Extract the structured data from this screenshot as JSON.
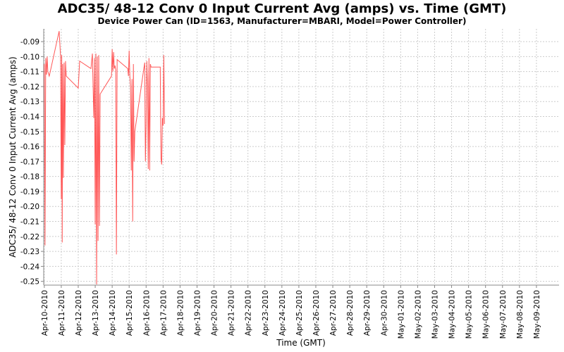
{
  "chart_data": {
    "type": "line",
    "title": "ADC35/ 48-12 Conv 0 Input Current Avg (amps) vs. Time (GMT)",
    "subtitle": "Device Power Can (ID=1563, Manufacturer=MBARI, Model=Power Controller)",
    "xlabel": "Time (GMT)",
    "ylabel": "ADC35/ 48-12 Conv 0 Input Current Avg (amps)",
    "x_tick_labels": [
      "Apr-10-2010",
      "Apr-11-2010",
      "Apr-12-2010",
      "Apr-13-2010",
      "Apr-14-2010",
      "Apr-15-2010",
      "Apr-16-2010",
      "Apr-17-2010",
      "Apr-18-2010",
      "Apr-19-2010",
      "Apr-20-2010",
      "Apr-21-2010",
      "Apr-22-2010",
      "Apr-23-2010",
      "Apr-24-2010",
      "Apr-25-2010",
      "Apr-26-2010",
      "Apr-27-2010",
      "Apr-28-2010",
      "Apr-29-2010",
      "Apr-30-2010",
      "May-01-2010",
      "May-02-2010",
      "May-03-2010",
      "May-04-2010",
      "May-05-2010",
      "May-06-2010",
      "May-07-2010",
      "May-08-2010",
      "May-09-2010"
    ],
    "y_tick_labels": [
      "-0.09",
      "-0.10",
      "-0.11",
      "-0.12",
      "-0.13",
      "-0.14",
      "-0.15",
      "-0.16",
      "-0.17",
      "-0.18",
      "-0.19",
      "-0.20",
      "-0.21",
      "-0.22",
      "-0.23",
      "-0.24",
      "-0.25"
    ],
    "y_ticks": [
      -0.09,
      -0.1,
      -0.11,
      -0.12,
      -0.13,
      -0.14,
      -0.15,
      -0.16,
      -0.17,
      -0.18,
      -0.19,
      -0.2,
      -0.21,
      -0.22,
      -0.23,
      -0.24,
      -0.25
    ],
    "xlim": [
      "2010-04-09T23:10",
      "2010-05-10T08:00"
    ],
    "ylim": [
      -0.2525,
      -0.0815
    ],
    "grid": true,
    "series": [
      {
        "color": "#ff5555",
        "points": [
          [
            "2010-04-10T00:00",
            -0.105
          ],
          [
            "2010-04-10T01:00",
            -0.226
          ],
          [
            "2010-04-10T02:00",
            -0.101
          ],
          [
            "2010-04-10T03:00",
            -0.112
          ],
          [
            "2010-04-10T04:00",
            -0.1
          ],
          [
            "2010-04-10T05:00",
            -0.11
          ],
          [
            "2010-04-10T07:00",
            -0.113
          ],
          [
            "2010-04-10T21:00",
            -0.083
          ],
          [
            "2010-04-10T23:00",
            -0.1
          ],
          [
            "2010-04-11T00:00",
            -0.195
          ],
          [
            "2010-04-11T00:40",
            -0.099
          ],
          [
            "2010-04-11T01:20",
            -0.224
          ],
          [
            "2010-04-11T02:00",
            -0.105
          ],
          [
            "2010-04-11T03:00",
            -0.181
          ],
          [
            "2010-04-11T04:00",
            -0.104
          ],
          [
            "2010-04-11T05:00",
            -0.159
          ],
          [
            "2010-04-11T06:00",
            -0.103
          ],
          [
            "2010-04-11T07:00",
            -0.113
          ],
          [
            "2010-04-12T00:00",
            -0.121
          ],
          [
            "2010-04-12T02:00",
            -0.103
          ],
          [
            "2010-04-12T18:00",
            -0.108
          ],
          [
            "2010-04-12T20:00",
            -0.098
          ],
          [
            "2010-04-12T22:00",
            -0.141
          ],
          [
            "2010-04-12T23:00",
            -0.101
          ],
          [
            "2010-04-13T00:00",
            -0.212
          ],
          [
            "2010-04-13T01:00",
            -0.098
          ],
          [
            "2010-04-13T02:00",
            -0.252
          ],
          [
            "2010-04-13T03:00",
            -0.1
          ],
          [
            "2010-04-13T04:00",
            -0.223
          ],
          [
            "2010-04-13T05:00",
            -0.099
          ],
          [
            "2010-04-13T06:00",
            -0.213
          ],
          [
            "2010-04-13T07:00",
            -0.125
          ],
          [
            "2010-04-13T23:00",
            -0.113
          ],
          [
            "2010-04-14T00:00",
            -0.095
          ],
          [
            "2010-04-14T01:00",
            -0.11
          ],
          [
            "2010-04-14T02:00",
            -0.097
          ],
          [
            "2010-04-14T03:00",
            -0.108
          ],
          [
            "2010-04-14T04:00",
            -0.106
          ],
          [
            "2010-04-14T05:00",
            -0.109
          ],
          [
            "2010-04-14T06:00",
            -0.232
          ],
          [
            "2010-04-14T07:00",
            -0.102
          ],
          [
            "2010-04-14T22:00",
            -0.108
          ],
          [
            "2010-04-14T23:00",
            -0.113
          ],
          [
            "2010-04-15T00:00",
            -0.096
          ],
          [
            "2010-04-15T01:00",
            -0.113
          ],
          [
            "2010-04-15T02:00",
            -0.12
          ],
          [
            "2010-04-15T03:00",
            -0.176
          ],
          [
            "2010-04-15T04:00",
            -0.115
          ],
          [
            "2010-04-15T05:00",
            -0.21
          ],
          [
            "2010-04-15T06:00",
            -0.105
          ],
          [
            "2010-04-15T07:00",
            -0.17
          ],
          [
            "2010-04-15T08:00",
            -0.15
          ],
          [
            "2010-04-15T22:00",
            -0.104
          ],
          [
            "2010-04-15T23:00",
            -0.17
          ],
          [
            "2010-04-16T00:00",
            -0.146
          ],
          [
            "2010-04-16T01:00",
            -0.103
          ],
          [
            "2010-04-16T02:00",
            -0.12
          ],
          [
            "2010-04-16T03:00",
            -0.175
          ],
          [
            "2010-04-16T04:00",
            -0.101
          ],
          [
            "2010-04-16T05:00",
            -0.176
          ],
          [
            "2010-04-16T06:00",
            -0.105
          ],
          [
            "2010-04-16T07:00",
            -0.107
          ],
          [
            "2010-04-16T20:00",
            -0.107
          ],
          [
            "2010-04-16T21:00",
            -0.168
          ],
          [
            "2010-04-16T22:00",
            -0.172
          ],
          [
            "2010-04-16T23:00",
            -0.141
          ],
          [
            "2010-04-17T00:00",
            -0.146
          ],
          [
            "2010-04-17T01:00",
            -0.099
          ],
          [
            "2010-04-17T02:00",
            -0.145
          ]
        ]
      }
    ]
  }
}
